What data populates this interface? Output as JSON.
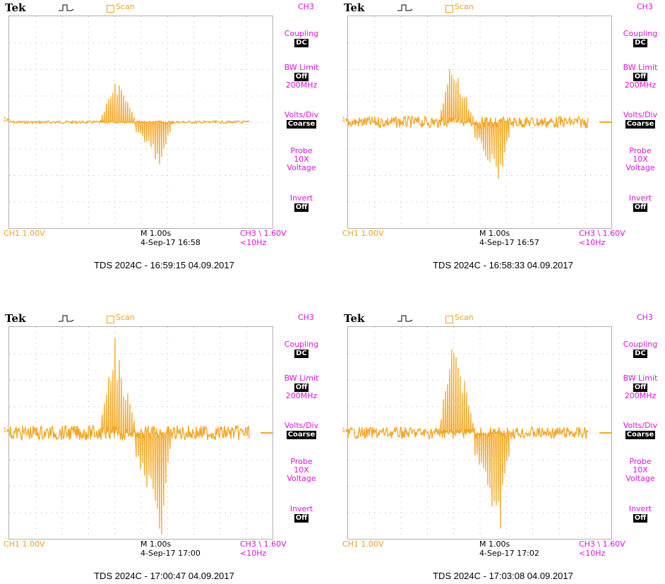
{
  "brand": "Tek",
  "scan_label": "Scan",
  "channel": "CH3",
  "menu": {
    "coupling_label": "Coupling",
    "coupling_value": "DC",
    "bw_label": "BW Limit",
    "bw_value": "Off",
    "bw_freq": "200MHz",
    "volts_label": "Volts/Div",
    "volts_value": "Coarse",
    "probe_label": "Probe",
    "probe_x": "10X",
    "probe_type": "Voltage",
    "invert_label": "Invert",
    "invert_value": "Off"
  },
  "ch1_scale": "CH1  1.00V",
  "timebase": "M 1.00s",
  "trigger": "CH3 \\ 1.60V",
  "trigger_freq": "<10Hz",
  "ground_marker": "1",
  "trace_color": "#f5a623",
  "menu_color": "#e010e0",
  "screens": [
    {
      "date": "4-Sep-17 16:58",
      "caption": "TDS 2024C - 16:59:15   04.09.2017",
      "pos_peak": 1.9,
      "neg_peak": 1.8,
      "noise": 0.05
    },
    {
      "date": "4-Sep-17 16:57",
      "caption": "TDS 2024C - 16:58:33   04.09.2017",
      "pos_peak": 2.5,
      "neg_peak": 2.5,
      "noise": 0.22
    },
    {
      "date": "4-Sep-17 17:00",
      "caption": "TDS 2024C - 17:00:47   04.09.2017",
      "pos_peak": 3.9,
      "neg_peak": 3.9,
      "noise": 0.28
    },
    {
      "date": "4-Sep-17 17:02",
      "caption": "TDS 2024C - 17:03:08   04.09.2017",
      "pos_peak": 4.0,
      "neg_peak": 4.0,
      "noise": 0.22
    }
  ]
}
